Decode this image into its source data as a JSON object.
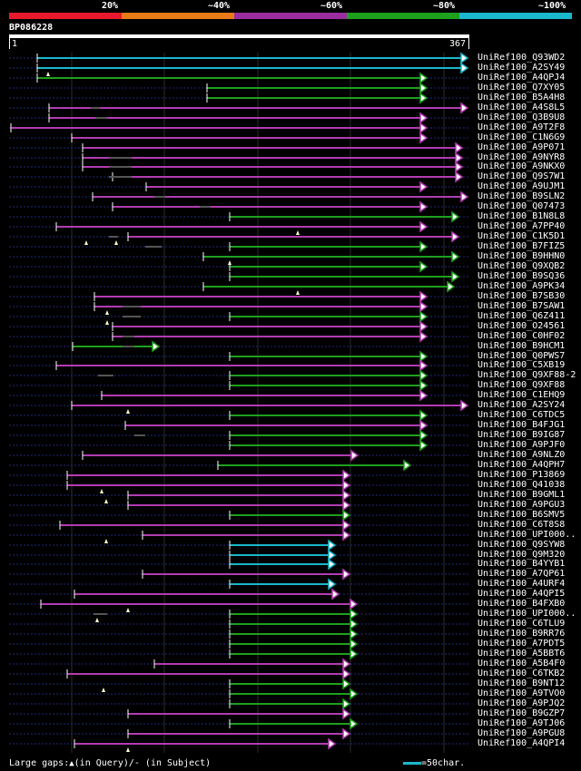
{
  "legend": {
    "ticks": [
      "20%",
      "~40%",
      "~60%",
      "~80%",
      "~100%"
    ],
    "colors": [
      "#e8192c",
      "#e87a18",
      "#9a2ea0",
      "#1ea01e",
      "#1ab8cc"
    ]
  },
  "query": {
    "id": "BP086228",
    "start": "1",
    "end": "367"
  },
  "hits": [
    {
      "name": "UniRef100_Q93WD2",
      "color": "cyan"
    },
    {
      "name": "UniRef100_A2SY49",
      "color": "cyan"
    },
    {
      "name": "UniRef100_A4QPJ4",
      "color": "green"
    },
    {
      "name": "UniRef100_Q7XY05",
      "color": "green"
    },
    {
      "name": "UniRef100_B5A4H8",
      "color": "green"
    },
    {
      "name": "UniRef100_A4S8L5",
      "color": "purple"
    },
    {
      "name": "UniRef100_Q3B9U8",
      "color": "purple"
    },
    {
      "name": "UniRef100_A9T2F8",
      "color": "purple"
    },
    {
      "name": "UniRef100_C1N6G9",
      "color": "purple"
    },
    {
      "name": "UniRef100_A9P071",
      "color": "purple"
    },
    {
      "name": "UniRef100_A9NYR8",
      "color": "purple"
    },
    {
      "name": "UniRef100_A9NKX0",
      "color": "purple"
    },
    {
      "name": "UniRef100_Q9S7W1",
      "color": "purple"
    },
    {
      "name": "UniRef100_A9UJM1",
      "color": "purple"
    },
    {
      "name": "UniRef100_B9SLN2",
      "color": "purple"
    },
    {
      "name": "UniRef100_Q07473",
      "color": "purple"
    },
    {
      "name": "UniRef100_B1N8L8",
      "color": "green"
    },
    {
      "name": "UniRef100_A7PP40",
      "color": "purple"
    },
    {
      "name": "UniRef100_C1K5D1",
      "color": "purple"
    },
    {
      "name": "UniRef100_B7FIZ5",
      "color": "green"
    },
    {
      "name": "UniRef100_B9HHN0",
      "color": "green"
    },
    {
      "name": "UniRef100_Q9XQB2",
      "color": "green"
    },
    {
      "name": "UniRef100_B9SQ36",
      "color": "green"
    },
    {
      "name": "UniRef100_A9PK34",
      "color": "green"
    },
    {
      "name": "UniRef100_B7SB30",
      "color": "purple"
    },
    {
      "name": "UniRef100_B7SAW1",
      "color": "purple"
    },
    {
      "name": "UniRef100_Q6Z411",
      "color": "green"
    },
    {
      "name": "UniRef100_O24561",
      "color": "purple"
    },
    {
      "name": "UniRef100_C0HF02",
      "color": "purple"
    },
    {
      "name": "UniRef100_B9HCM1",
      "color": "green"
    },
    {
      "name": "UniRef100_Q0PWS7",
      "color": "green"
    },
    {
      "name": "UniRef100_C5XB19",
      "color": "purple"
    },
    {
      "name": "UniRef100_Q9XF88-2",
      "color": "green"
    },
    {
      "name": "UniRef100_Q9XF88",
      "color": "green"
    },
    {
      "name": "UniRef100_C1EHQ9",
      "color": "purple"
    },
    {
      "name": "UniRef100_A2SY24",
      "color": "purple"
    },
    {
      "name": "UniRef100_C6TDC5",
      "color": "green"
    },
    {
      "name": "UniRef100_B4FJG1",
      "color": "purple"
    },
    {
      "name": "UniRef100_B9IG87",
      "color": "green"
    },
    {
      "name": "UniRef100_A9PJF0",
      "color": "green"
    },
    {
      "name": "UniRef100_A9NLZ0",
      "color": "purple"
    },
    {
      "name": "UniRef100_A4QPH7",
      "color": "green"
    },
    {
      "name": "UniRef100_P13869",
      "color": "purple"
    },
    {
      "name": "UniRef100_Q41038",
      "color": "purple"
    },
    {
      "name": "UniRef100_B9GML1",
      "color": "purple"
    },
    {
      "name": "UniRef100_A9PGU3",
      "color": "purple"
    },
    {
      "name": "UniRef100_B6SMV5",
      "color": "green"
    },
    {
      "name": "UniRef100_C6T8S8",
      "color": "purple"
    },
    {
      "name": "UniRef100_UPI000..",
      "color": "purple"
    },
    {
      "name": "UniRef100_Q9SYW8",
      "color": "cyan"
    },
    {
      "name": "UniRef100_Q9M320",
      "color": "cyan"
    },
    {
      "name": "UniRef100_B4YYB1",
      "color": "cyan"
    },
    {
      "name": "UniRef100_A7QP61",
      "color": "purple"
    },
    {
      "name": "UniRef100_A4URF4",
      "color": "cyan"
    },
    {
      "name": "UniRef100_A4QPI5",
      "color": "purple"
    },
    {
      "name": "UniRef100_B4FXB0",
      "color": "purple"
    },
    {
      "name": "UniRef100_UPI000..",
      "color": "green"
    },
    {
      "name": "UniRef100_C6TLU9",
      "color": "green"
    },
    {
      "name": "UniRef100_B9RR76",
      "color": "green"
    },
    {
      "name": "UniRef100_A7PDT5",
      "color": "green"
    },
    {
      "name": "UniRef100_A5BBT6",
      "color": "green"
    },
    {
      "name": "UniRef100_A5B4F0",
      "color": "purple"
    },
    {
      "name": "UniRef100_C6TKB2",
      "color": "purple"
    },
    {
      "name": "UniRef100_B9NT12",
      "color": "green"
    },
    {
      "name": "UniRef100_A9TVO0",
      "color": "green"
    },
    {
      "name": "UniRef100_A9PJQ2",
      "color": "green"
    },
    {
      "name": "UniRef100_B9GZP7",
      "color": "purple"
    },
    {
      "name": "UniRef100_A9TJ06",
      "color": "green"
    },
    {
      "name": "UniRef100_A9PGU8",
      "color": "purple"
    },
    {
      "name": "UniRef100_A4QPI4",
      "color": "purple"
    }
  ],
  "footer": {
    "large_gaps": "Large gaps:",
    "in_query": "(in Query)/",
    "in_subject": "- (in Subject)",
    "scale_text": "=50char."
  }
}
